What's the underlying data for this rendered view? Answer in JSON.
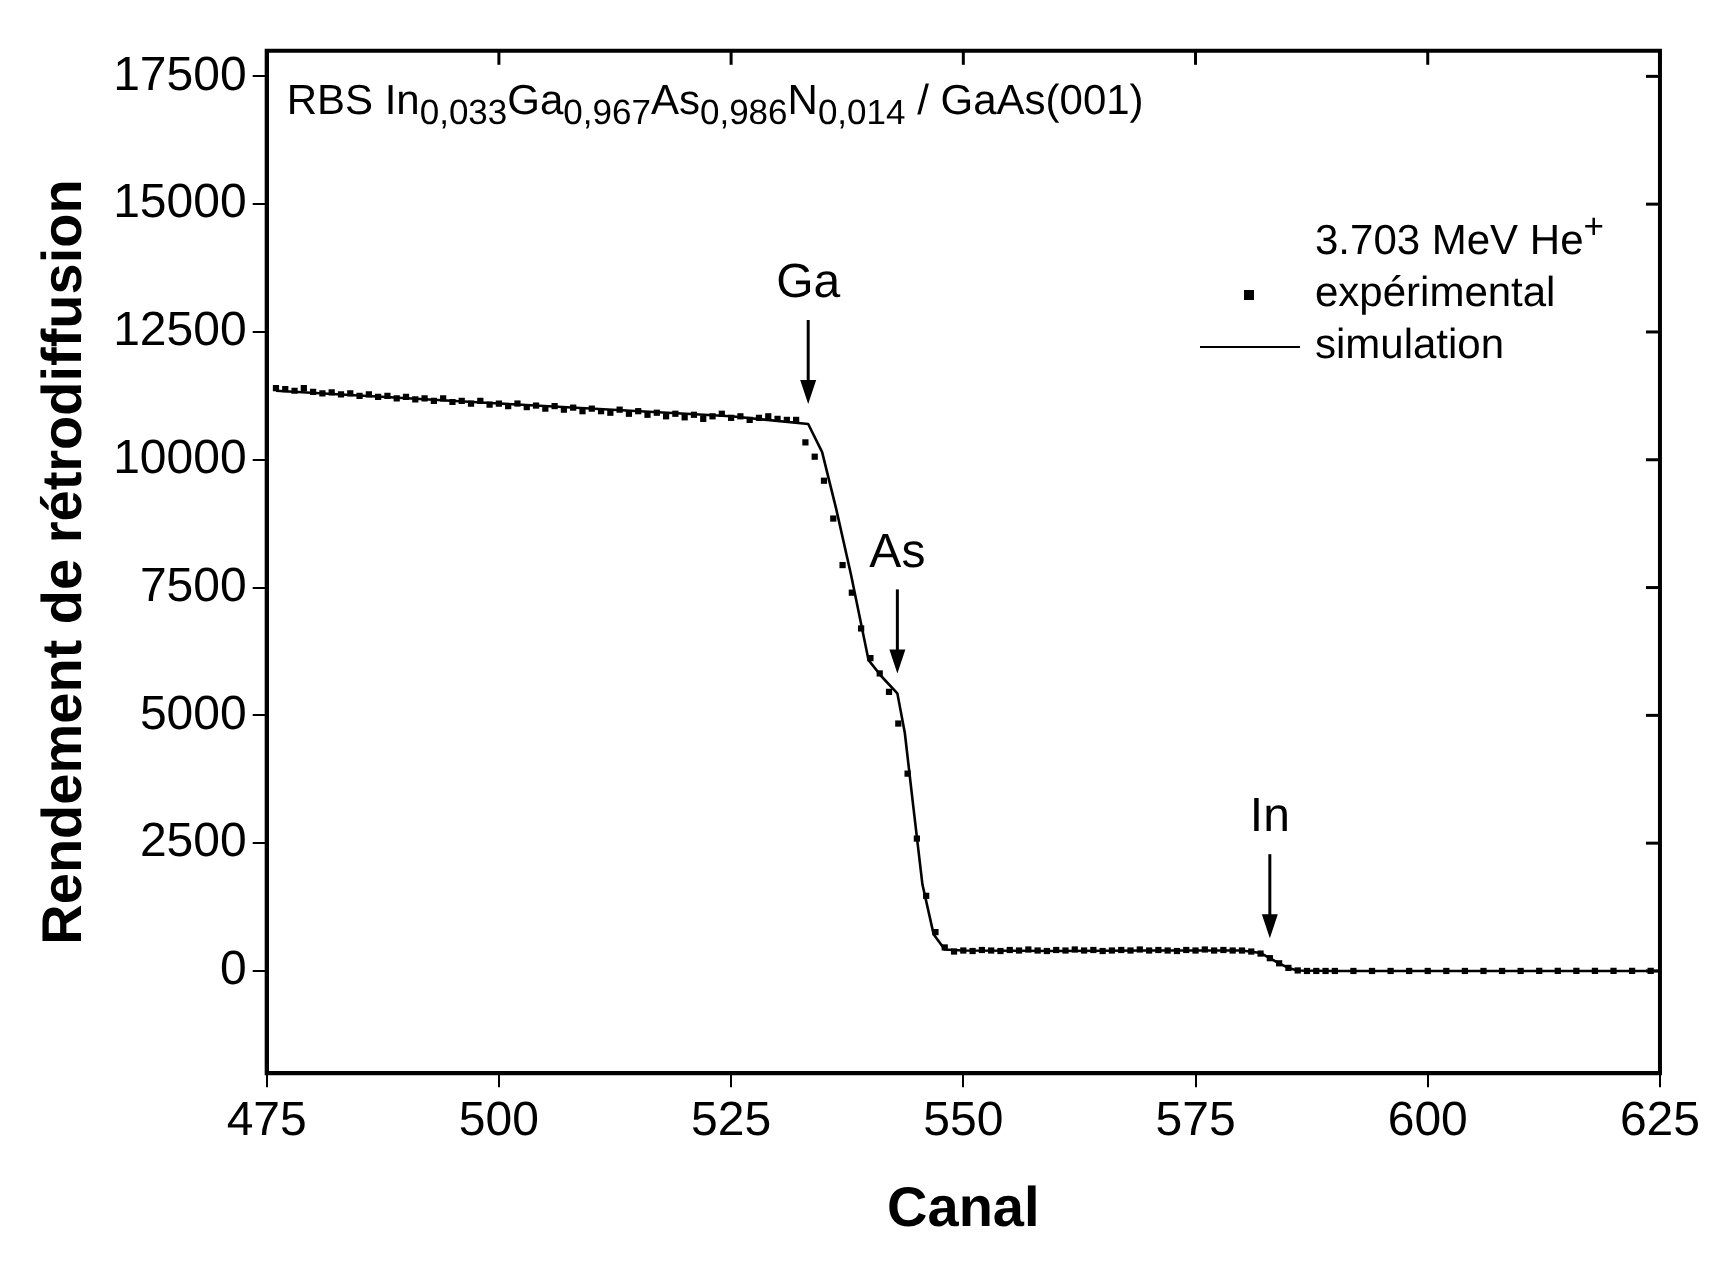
{
  "chart_data": {
    "type": "scatter",
    "title": "RBS In$_{0,033}$Ga$_{0,967}$As$_{0,986}$N$_{0,014}$ / GaAs(001)",
    "xlabel": "Canal",
    "ylabel": "Rendement de rétrodiffusion",
    "legend_title": "3.703 MeV He$^{+}$",
    "legend": "top right",
    "grid": false,
    "xlim": [
      475,
      625
    ],
    "ylim": [
      -2000,
      18000
    ],
    "xticks": [
      475,
      500,
      525,
      550,
      575,
      600,
      625
    ],
    "yticks": [
      0,
      2500,
      5000,
      7500,
      10000,
      12500,
      15000,
      17500
    ],
    "annotations": [
      {
        "text": "Ga",
        "x": 533.3,
        "y": 10700
      },
      {
        "text": "As",
        "x": 542.9,
        "y": 5430
      },
      {
        "text": "In",
        "x": 583,
        "y": 250
      }
    ],
    "series": [
      {
        "name": "expérimental",
        "type": "scatter",
        "marker": "square",
        "color": "#000000",
        "x": [
          476,
          477,
          478,
          479,
          480,
          481,
          482,
          483,
          484,
          485,
          486,
          487,
          488,
          489,
          490,
          491,
          492,
          493,
          494,
          495,
          496,
          497,
          498,
          499,
          500,
          501,
          502,
          503,
          504,
          505,
          506,
          507,
          508,
          509,
          510,
          511,
          512,
          513,
          514,
          515,
          516,
          517,
          518,
          519,
          520,
          521,
          522,
          523,
          524,
          525,
          526,
          527,
          528,
          529,
          530,
          531,
          532,
          533,
          534,
          535,
          536,
          537,
          538,
          539,
          540,
          541,
          542,
          543,
          544,
          545,
          546,
          547,
          548,
          549,
          550,
          551,
          552,
          553,
          554,
          555,
          556,
          557,
          558,
          559,
          560,
          561,
          562,
          563,
          564,
          565,
          566,
          567,
          568,
          569,
          570,
          571,
          572,
          573,
          574,
          575,
          576,
          577,
          578,
          579,
          580,
          581,
          582,
          583,
          584,
          585,
          586,
          587,
          588,
          589,
          590,
          592,
          594,
          596,
          598,
          600,
          602,
          604,
          606,
          608,
          610,
          612,
          614,
          616,
          618,
          620,
          622,
          624
        ],
        "values": [
          11400,
          11380,
          11350,
          11400,
          11330,
          11300,
          11320,
          11280,
          11300,
          11250,
          11280,
          11230,
          11250,
          11200,
          11230,
          11180,
          11200,
          11150,
          11200,
          11130,
          11150,
          11100,
          11150,
          11080,
          11100,
          11050,
          11100,
          11030,
          11060,
          11000,
          11050,
          10980,
          11020,
          10950,
          11000,
          10950,
          10920,
          10980,
          10900,
          10950,
          10880,
          10920,
          10850,
          10900,
          10830,
          10880,
          10800,
          10850,
          10900,
          10820,
          10850,
          10780,
          10820,
          10850,
          10800,
          10780,
          10780,
          10340,
          10060,
          9590,
          8850,
          7940,
          7400,
          6700,
          6120,
          5820,
          5460,
          4840,
          3860,
          2590,
          1470,
          760,
          460,
          380,
          400,
          390,
          410,
          400,
          390,
          410,
          400,
          420,
          400,
          390,
          410,
          400,
          420,
          400,
          410,
          390,
          400,
          410,
          400,
          420,
          400,
          410,
          400,
          390,
          410,
          400,
          420,
          400,
          410,
          400,
          400,
          380,
          340,
          250,
          150,
          60,
          10,
          0,
          0,
          0,
          0,
          0,
          0,
          0,
          0,
          0,
          0,
          0,
          0,
          0,
          0,
          0,
          0,
          0,
          0,
          0,
          0,
          0
        ]
      },
      {
        "name": "simulation",
        "type": "line",
        "color": "#000000",
        "x": [
          476,
          500,
          525,
          533.3,
          534.8,
          536.3,
          537.9,
          539.8,
          541.2,
          542.9,
          543.7,
          544.6,
          545.6,
          546.8,
          548,
          550,
          560,
          570,
          580,
          582,
          583,
          584,
          585,
          586,
          590,
          625
        ],
        "values": [
          11350,
          11100,
          10850,
          10700,
          10150,
          9050,
          7760,
          6080,
          5760,
          5430,
          4660,
          3240,
          1690,
          720,
          420,
          400,
          390,
          400,
          400,
          350,
          250,
          150,
          60,
          10,
          0,
          0
        ]
      }
    ]
  }
}
